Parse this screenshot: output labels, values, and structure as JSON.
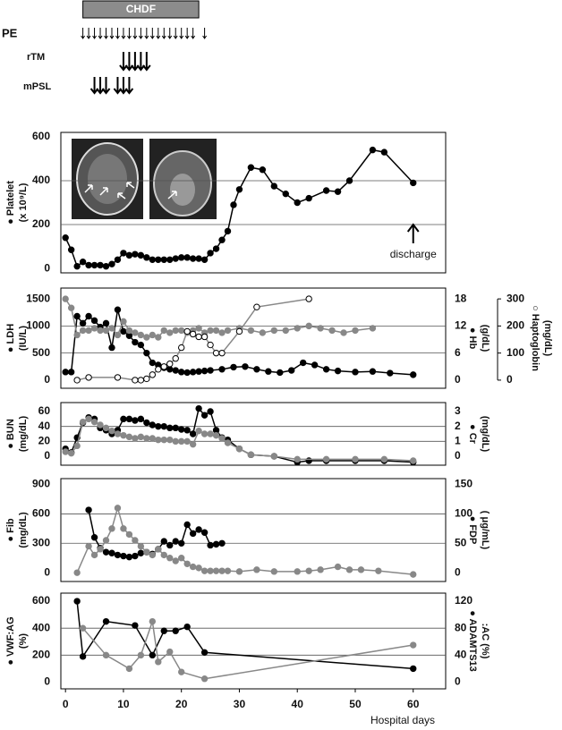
{
  "therapy": {
    "chdf": {
      "label": "CHDF",
      "start": 3,
      "end": 23
    },
    "pe": {
      "label": "PE",
      "days": [
        3,
        4,
        5,
        6,
        7,
        8,
        9,
        10,
        11,
        12,
        13,
        14,
        15,
        16,
        17,
        18,
        19,
        20,
        21,
        22,
        24
      ]
    },
    "rtm": {
      "label": "rTM",
      "days": [
        10,
        11,
        12,
        13,
        14
      ]
    },
    "mpsl": {
      "label": "mPSL",
      "days": [
        5,
        6,
        7,
        9,
        10,
        11
      ]
    }
  },
  "chart_data": [
    {
      "type": "line",
      "ylabel": [
        "● Platelet",
        "(x 10⁹/L)"
      ],
      "xlim": [
        -0.8,
        65.6
      ],
      "ylim": [
        -20,
        620
      ],
      "yticks": [
        0,
        200,
        400,
        600
      ],
      "grid": true,
      "annotation": {
        "text": "discharge",
        "x": 60
      },
      "series": [
        {
          "name": "Platelet",
          "color": "#000000",
          "marker": "filled",
          "x": [
            0,
            1,
            2,
            3,
            4,
            5,
            6,
            7,
            8,
            9,
            10,
            11,
            12,
            13,
            14,
            15,
            16,
            17,
            18,
            19,
            20,
            21,
            22,
            23,
            24,
            25,
            26,
            27,
            28,
            29,
            30,
            32,
            34,
            36,
            38,
            40,
            42,
            45,
            47,
            49,
            53,
            55,
            60
          ],
          "values": [
            140,
            85,
            10,
            30,
            15,
            15,
            15,
            10,
            20,
            40,
            70,
            60,
            65,
            60,
            50,
            40,
            40,
            40,
            40,
            45,
            50,
            50,
            45,
            45,
            40,
            70,
            90,
            130,
            170,
            290,
            360,
            460,
            450,
            375,
            340,
            300,
            320,
            355,
            350,
            400,
            540,
            530,
            390
          ]
        }
      ]
    },
    {
      "type": "line",
      "ylabel": [
        "● LDH",
        "(IU/L)"
      ],
      "y2label": [
        "● Hb",
        "(g/dL)"
      ],
      "y3label": [
        "○ Haptoglobin",
        "(mg/dL)"
      ],
      "xlim": [
        -0.8,
        65.6
      ],
      "ylim": [
        -150,
        1700
      ],
      "yticks": [
        0,
        500,
        1000,
        1500
      ],
      "y2lim": [
        -1.8,
        20.4
      ],
      "y2ticks": [
        0,
        6,
        12,
        18
      ],
      "y3lim": [
        -30,
        340
      ],
      "y3ticks": [
        0,
        100,
        200,
        300
      ],
      "grid": true,
      "series": [
        {
          "name": "LDH",
          "color": "#000000",
          "marker": "filled",
          "x": [
            0,
            1,
            2,
            3,
            4,
            5,
            6,
            7,
            8,
            9,
            10,
            11,
            12,
            13,
            14,
            15,
            16,
            17,
            18,
            19,
            20,
            21,
            22,
            23,
            24,
            25,
            27,
            29,
            31,
            33,
            35,
            37,
            39,
            41,
            43,
            45,
            47,
            50,
            53,
            56,
            60
          ],
          "values": [
            150,
            150,
            1180,
            1050,
            1180,
            1100,
            980,
            1050,
            600,
            1300,
            900,
            820,
            700,
            650,
            500,
            320,
            280,
            230,
            200,
            180,
            150,
            140,
            150,
            160,
            170,
            180,
            200,
            240,
            250,
            200,
            160,
            140,
            180,
            320,
            280,
            200,
            170,
            150,
            160,
            130,
            100
          ]
        },
        {
          "name": "Hb",
          "color": "#888888",
          "marker": "filled",
          "axis": "y2",
          "x": [
            0,
            1,
            2,
            3,
            4,
            5,
            6,
            7,
            8,
            9,
            10,
            11,
            12,
            13,
            14,
            15,
            16,
            17,
            18,
            19,
            20,
            21,
            22,
            23,
            24,
            25,
            26,
            27,
            28,
            30,
            32,
            34,
            36,
            38,
            40,
            42,
            44,
            46,
            48,
            50,
            53
          ],
          "values": [
            18,
            16,
            10,
            11,
            11,
            11.5,
            11,
            11,
            11.5,
            10,
            13,
            11,
            10.5,
            10,
            9.5,
            10,
            9.5,
            11,
            10.5,
            11,
            11,
            10.5,
            11,
            11.5,
            10.5,
            11,
            11,
            10.5,
            11,
            11.5,
            11,
            10.5,
            11,
            11,
            11.5,
            12,
            11.5,
            11,
            10.5,
            11,
            11.5
          ]
        },
        {
          "name": "Haptoglobin",
          "color": "#888888",
          "marker": "open",
          "axis": "y3",
          "x": [
            2,
            4,
            9,
            12,
            13,
            14,
            15,
            16,
            17,
            18,
            19,
            20,
            21,
            22,
            23,
            24,
            25,
            26,
            27,
            30,
            33,
            42
          ],
          "values": [
            0,
            10,
            10,
            0,
            0,
            5,
            20,
            40,
            50,
            60,
            80,
            120,
            180,
            170,
            160,
            160,
            130,
            100,
            100,
            180,
            270,
            300
          ]
        }
      ]
    },
    {
      "type": "line",
      "ylabel": [
        "● BUN",
        "(mg/dL)"
      ],
      "y2label": [
        "● Cr",
        "(mg/dL)"
      ],
      "xlim": [
        -0.8,
        65.6
      ],
      "ylim": [
        -12,
        72
      ],
      "yticks": [
        0,
        20,
        40,
        60
      ],
      "y2lim": [
        -0.6,
        3.6
      ],
      "y2ticks": [
        0,
        1,
        2,
        3
      ],
      "grid": true,
      "series": [
        {
          "name": "BUN",
          "color": "#000000",
          "marker": "filled",
          "x": [
            0,
            1,
            2,
            3,
            4,
            5,
            6,
            7,
            8,
            9,
            10,
            11,
            12,
            13,
            14,
            15,
            16,
            17,
            18,
            19,
            20,
            21,
            22,
            23,
            24,
            25,
            26,
            27,
            28,
            30,
            32,
            36,
            40,
            42,
            45,
            50,
            55,
            60
          ],
          "values": [
            10,
            5,
            25,
            45,
            52,
            50,
            38,
            35,
            30,
            35,
            50,
            50,
            48,
            50,
            45,
            42,
            40,
            40,
            38,
            38,
            36,
            35,
            30,
            64,
            55,
            60,
            35,
            25,
            22,
            10,
            2,
            0,
            -8,
            -6,
            -6,
            -6,
            -6,
            -8
          ]
        },
        {
          "name": "Cr",
          "color": "#888888",
          "marker": "filled",
          "axis": "y2",
          "x": [
            0,
            1,
            2,
            3,
            4,
            5,
            6,
            7,
            8,
            9,
            10,
            11,
            12,
            13,
            14,
            15,
            16,
            17,
            18,
            19,
            20,
            21,
            22,
            23,
            24,
            25,
            26,
            27,
            28,
            30,
            32,
            36,
            40,
            45,
            50,
            55,
            60
          ],
          "values": [
            0.3,
            0.2,
            0.7,
            2.3,
            2.5,
            2.3,
            2.1,
            1.9,
            1.7,
            1.5,
            1.4,
            1.3,
            1.2,
            1.3,
            1.2,
            1.2,
            1.1,
            1.1,
            1.1,
            1,
            1,
            1,
            0.8,
            1.7,
            1.5,
            1.5,
            1.4,
            1.2,
            0.9,
            0.5,
            0.1,
            0,
            -0.2,
            -0.2,
            -0.2,
            -0.2,
            -0.3
          ]
        }
      ]
    },
    {
      "type": "line",
      "ylabel": [
        "● Fib",
        "(mg/dL)"
      ],
      "y2label": [
        "● FDP",
        "( μg/mL)"
      ],
      "xlim": [
        -0.8,
        65.6
      ],
      "ylim": [
        -90,
        960
      ],
      "yticks": [
        0,
        300,
        600,
        900
      ],
      "y2lim": [
        -15,
        160
      ],
      "y2ticks": [
        0,
        50,
        100,
        150
      ],
      "grid": true,
      "series": [
        {
          "name": "Fib",
          "color": "#000000",
          "marker": "filled",
          "x": [
            4,
            5,
            6,
            7,
            8,
            9,
            10,
            11,
            12,
            13,
            14,
            15,
            16,
            17,
            18,
            19,
            20,
            21,
            22,
            23,
            24,
            25,
            26,
            27
          ],
          "values": [
            640,
            360,
            250,
            210,
            200,
            180,
            170,
            160,
            170,
            200,
            210,
            190,
            240,
            320,
            280,
            320,
            300,
            490,
            400,
            440,
            410,
            280,
            290,
            300
          ]
        },
        {
          "name": "FDP",
          "color": "#888888",
          "marker": "filled",
          "axis": "y2",
          "x": [
            2,
            4,
            5,
            6,
            7,
            8,
            9,
            10,
            11,
            12,
            13,
            14,
            15,
            16,
            17,
            18,
            19,
            20,
            21,
            22,
            23,
            24,
            25,
            26,
            27,
            28,
            30,
            33,
            36,
            40,
            42,
            44,
            47,
            49,
            51,
            54,
            60
          ],
          "values": [
            0,
            45,
            30,
            40,
            55,
            75,
            110,
            75,
            65,
            55,
            45,
            35,
            30,
            40,
            30,
            25,
            20,
            25,
            15,
            10,
            8,
            3,
            3,
            3,
            3,
            3,
            2,
            5,
            2,
            2,
            3,
            5,
            10,
            5,
            5,
            3,
            -3
          ]
        }
      ]
    },
    {
      "type": "line",
      "ylabel": [
        "● VWF:AG",
        "(%)"
      ],
      "y2label": [
        "● ADAMTS13",
        ":AC (%)"
      ],
      "xlim": [
        -0.8,
        65.6
      ],
      "ylim": [
        -50,
        660
      ],
      "yticks": [
        0,
        200,
        400,
        600
      ],
      "y2lim": [
        -10,
        132
      ],
      "y2ticks": [
        0,
        40,
        80,
        120
      ],
      "grid": true,
      "xticks": [
        0,
        10,
        20,
        30,
        40,
        50,
        60
      ],
      "xlabel": "Hospital days",
      "series": [
        {
          "name": "VWF:AG",
          "color": "#000000",
          "marker": "filled",
          "x": [
            2,
            3,
            7,
            12,
            15,
            17,
            19,
            21,
            24,
            60
          ],
          "values": [
            600,
            190,
            450,
            420,
            200,
            380,
            380,
            410,
            220,
            100
          ]
        },
        {
          "name": "ADAMTS13:AC",
          "color": "#888888",
          "marker": "filled",
          "axis": "y2",
          "x": [
            3,
            7,
            11,
            13,
            15,
            16,
            18,
            20,
            24,
            60
          ],
          "values": [
            80,
            40,
            20,
            40,
            90,
            30,
            45,
            15,
            5,
            55
          ]
        }
      ]
    }
  ]
}
